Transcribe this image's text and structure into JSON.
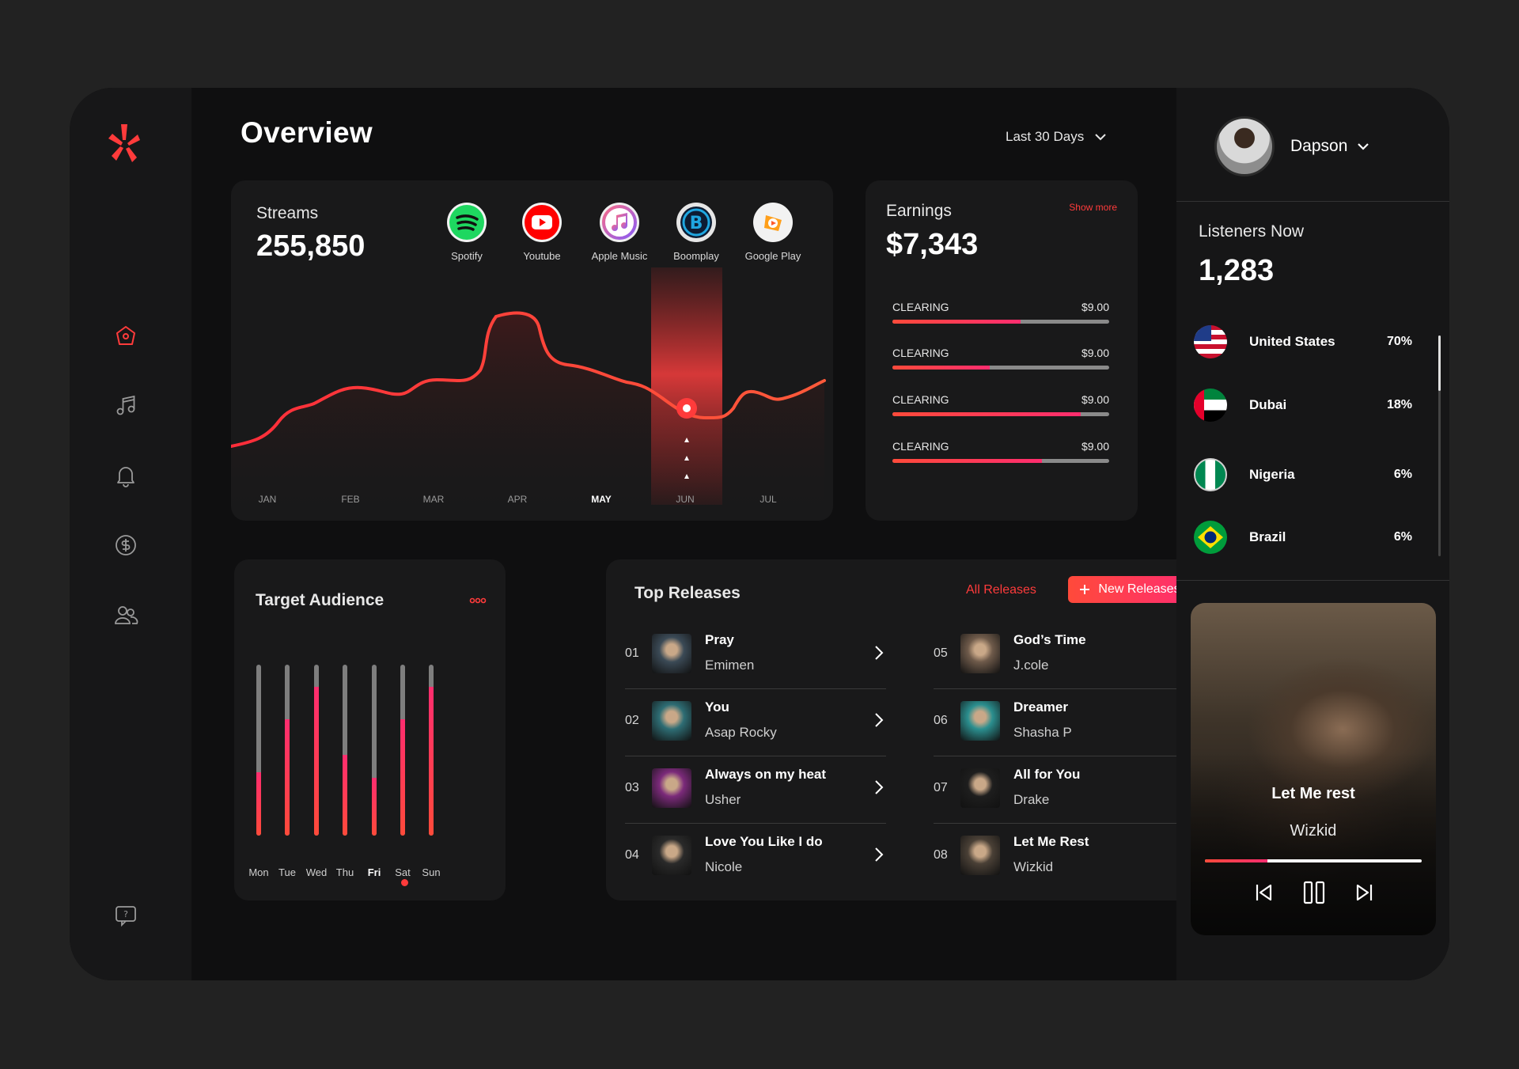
{
  "header": {
    "title": "Overview",
    "range": "Last 30 Days"
  },
  "streams": {
    "label": "Streams",
    "value": "255,850",
    "platforms": [
      {
        "name": "Spotify",
        "icon": "spotify-icon",
        "color": "#1ED760"
      },
      {
        "name": "Youtube",
        "icon": "youtube-icon",
        "color": "#FF0000"
      },
      {
        "name": "Apple Music",
        "icon": "apple-music-icon",
        "color": "#F0F0F0"
      },
      {
        "name": "Boomplay",
        "icon": "boomplay-icon",
        "color": "#0F2D59"
      },
      {
        "name": "Google Play",
        "icon": "google-play-icon",
        "color": "#F2F2F2"
      }
    ],
    "months": [
      "JAN",
      "FEB",
      "MAR",
      "APR",
      "MAY",
      "JUN",
      "JUL"
    ],
    "active_month": "MAY"
  },
  "earnings": {
    "label": "Earnings",
    "show_more": "Show more",
    "value": "$7,343",
    "items": [
      {
        "label": "CLEARING",
        "amount": "$9.00",
        "progress": 0.59
      },
      {
        "label": "CLEARING",
        "amount": "$9.00",
        "progress": 0.45
      },
      {
        "label": "CLEARING",
        "amount": "$9.00",
        "progress": 0.87
      },
      {
        "label": "CLEARING",
        "amount": "$9.00",
        "progress": 0.69
      }
    ]
  },
  "audience": {
    "title": "Target Audience",
    "days": [
      {
        "day": "Mon",
        "level": 0.37
      },
      {
        "day": "Tue",
        "level": 0.68
      },
      {
        "day": "Wed",
        "level": 0.87
      },
      {
        "day": "Thu",
        "level": 0.47
      },
      {
        "day": "Fri",
        "level": 0.34
      },
      {
        "day": "Sat",
        "level": 0.68
      },
      {
        "day": "Sun",
        "level": 0.87
      }
    ],
    "active_day": "Fri"
  },
  "releases": {
    "title": "Top Releases",
    "all_label": "All Releases",
    "new_label": "New Releases",
    "items": [
      {
        "num": "01",
        "title": "Pray",
        "artist": "Emimen",
        "thumb": "#3b4a56"
      },
      {
        "num": "02",
        "title": "You",
        "artist": "Asap Rocky",
        "thumb": "#2e6d74"
      },
      {
        "num": "03",
        "title": "Always on my heat",
        "artist": "Usher",
        "thumb": "#7b2a7a"
      },
      {
        "num": "04",
        "title": "Love You Like I do",
        "artist": "Nicole",
        "thumb": "#2a2a2a"
      },
      {
        "num": "05",
        "title": "God’s Time",
        "artist": "J.cole",
        "thumb": "#6e5a4a"
      },
      {
        "num": "06",
        "title": "Dreamer",
        "artist": "Shasha P",
        "thumb": "#2b8f8f"
      },
      {
        "num": "07",
        "title": "All for You",
        "artist": "Drake",
        "thumb": "#1e1e1e"
      },
      {
        "num": "08",
        "title": "Let Me Rest",
        "artist": "Wizkid",
        "thumb": "#4a4036"
      }
    ]
  },
  "profile": {
    "name": "Dapson"
  },
  "listeners": {
    "label": "Listeners Now",
    "value": "1,283",
    "countries": [
      {
        "name": "United States",
        "pct": "70%",
        "flag": "us-flag-icon"
      },
      {
        "name": "Dubai",
        "pct": "18%",
        "flag": "uae-flag-icon"
      },
      {
        "name": "Nigeria",
        "pct": "6%",
        "flag": "nigeria-flag-icon"
      },
      {
        "name": "Brazil",
        "pct": "6%",
        "flag": "brazil-flag-icon"
      }
    ]
  },
  "player": {
    "title": "Let Me rest",
    "artist": "Wizkid",
    "progress": 0.29
  },
  "colors": {
    "accent": "#FF3B3B",
    "accent2": "#FF2D6F",
    "bg": "#0F0F10",
    "card": "#19191A"
  }
}
